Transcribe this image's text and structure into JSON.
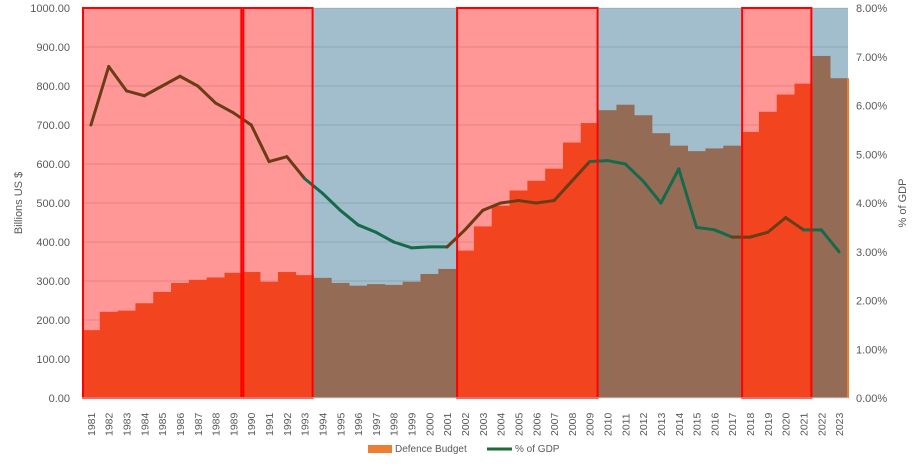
{
  "chart_data": {
    "type": "bar+line",
    "title": "",
    "ylabel": "Billions US $",
    "y2label": "% of GDP",
    "ylim": [
      0,
      1000
    ],
    "y2lim": [
      0,
      8
    ],
    "yticks": [
      "0.00",
      "100.00",
      "200.00",
      "300.00",
      "400.00",
      "500.00",
      "600.00",
      "700.00",
      "800.00",
      "900.00",
      "1000.00"
    ],
    "y2ticks": [
      "0.00%",
      "1.00%",
      "2.00%",
      "3.00%",
      "4.00%",
      "5.00%",
      "6.00%",
      "7.00%",
      "8.00%"
    ],
    "grid": true,
    "legend_position": "bottom",
    "categories": [
      "1981",
      "1982",
      "1983",
      "1984",
      "1985",
      "1986",
      "1987",
      "1988",
      "1989",
      "1990",
      "1991",
      "1992",
      "1993",
      "1994",
      "1995",
      "1996",
      "1997",
      "1998",
      "1999",
      "2000",
      "2001",
      "2002",
      "2003",
      "2004",
      "2005",
      "2006",
      "2007",
      "2008",
      "2009",
      "2010",
      "2011",
      "2012",
      "2013",
      "2014",
      "2015",
      "2016",
      "2017",
      "2018",
      "2019",
      "2020",
      "2021",
      "2022",
      "2023"
    ],
    "series": [
      {
        "name": "Defence Budget",
        "type": "bar",
        "axis": "left",
        "values": [
          174,
          221,
          224,
          243,
          272,
          295,
          303,
          309,
          321,
          323,
          298,
          323,
          315,
          308,
          295,
          288,
          292,
          290,
          298,
          318,
          331,
          378,
          440,
          493,
          532,
          557,
          588,
          655,
          705,
          738,
          752,
          725,
          679,
          647,
          633,
          640,
          647,
          682,
          734,
          778,
          806,
          877,
          820
        ]
      },
      {
        "name": "% of GDP",
        "type": "line",
        "axis": "right",
        "values": [
          5.6,
          6.8,
          6.3,
          6.2,
          6.4,
          6.6,
          6.4,
          6.05,
          5.85,
          5.6,
          4.85,
          4.95,
          4.5,
          4.2,
          3.85,
          3.55,
          3.4,
          3.2,
          3.08,
          3.1,
          3.1,
          3.45,
          3.85,
          4.0,
          4.05,
          4.0,
          4.05,
          4.45,
          4.85,
          4.87,
          4.8,
          4.45,
          4.0,
          4.7,
          3.5,
          3.45,
          3.3,
          3.3,
          3.4,
          3.7,
          3.45,
          3.45,
          3.0
        ]
      }
    ],
    "shaded_periods": [
      {
        "from": "1981",
        "to": "1993",
        "shade": "pink"
      },
      {
        "from": "1994",
        "to": "2001",
        "shade": "blue"
      },
      {
        "from": "2002",
        "to": "2009",
        "shade": "pink"
      },
      {
        "from": "2010",
        "to": "2017",
        "shade": "blue"
      },
      {
        "from": "2018",
        "to": "2021",
        "shade": "pink"
      },
      {
        "from": "2022",
        "to": "2023",
        "shade": "blue"
      }
    ],
    "highlight_boxes": [
      [
        "1981",
        "1989"
      ],
      [
        "1990",
        "1993"
      ],
      [
        "2002",
        "2009"
      ],
      [
        "2018",
        "2021"
      ]
    ],
    "colors": {
      "pink_bg": "#ff9797",
      "blue_bg": "#a2bdcb",
      "bar_pink": "#f2451f",
      "bar_blue": "#946c55",
      "line_pink": "#6b3c15",
      "line_blue": "#16694a",
      "box": "#ff0000",
      "legend_bar": "#ed7d31",
      "legend_line": "#1e6b3a"
    }
  }
}
